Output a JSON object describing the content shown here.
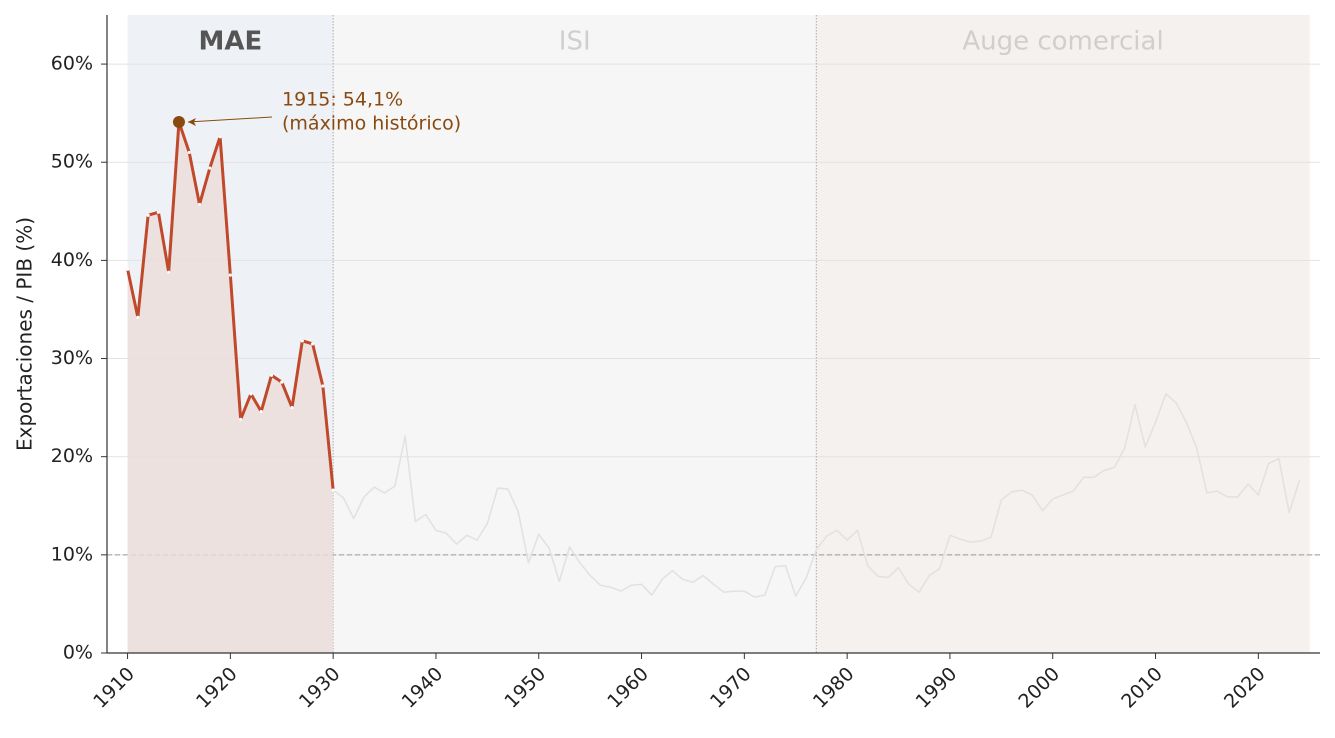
{
  "chart_data": {
    "type": "line",
    "ylabel": "Exportaciones / PIB (%)",
    "xlim": [
      1908,
      2026
    ],
    "ylim": [
      0,
      65
    ],
    "xticks": [
      1910,
      1920,
      1930,
      1940,
      1950,
      1960,
      1970,
      1980,
      1990,
      2000,
      2010,
      2020
    ],
    "yticks": [
      {
        "value": 0,
        "label": "0%"
      },
      {
        "value": 10,
        "label": "10%"
      },
      {
        "value": 20,
        "label": "20%"
      },
      {
        "value": 30,
        "label": "30%"
      },
      {
        "value": 40,
        "label": "40%"
      },
      {
        "value": 50,
        "label": "50%"
      },
      {
        "value": 60,
        "label": "60%"
      }
    ],
    "grid": true,
    "hline": 10,
    "regions": [
      {
        "label": "MAE",
        "start": 1910,
        "end": 1930,
        "color": "#eef2f7",
        "bold": true
      },
      {
        "label": "ISI",
        "start": 1930,
        "end": 1977,
        "color": "#f6f6f6",
        "bold": false
      },
      {
        "label": "Auge comercial",
        "start": 1977,
        "end": 2025,
        "color": "#f5f1ee",
        "bold": false
      }
    ],
    "series": [
      {
        "color": "#c0492b",
        "fill": "#ecdcda",
        "x": [
          1910,
          1911,
          1912,
          1913,
          1914,
          1915,
          1916,
          1917,
          1918,
          1919,
          1920,
          1921,
          1922,
          1923,
          1924,
          1925,
          1926,
          1927,
          1928,
          1929,
          1930
        ],
        "values": [
          39.1,
          34.2,
          44.6,
          44.9,
          38.8,
          54.1,
          51.0,
          45.7,
          49.4,
          52.6,
          38.5,
          23.8,
          26.4,
          24.6,
          28.3,
          27.6,
          25.0,
          31.8,
          31.5,
          27.2,
          16.6
        ]
      },
      {
        "color": "#e2e2e2",
        "x": [
          1930,
          1931,
          1932,
          1933,
          1934,
          1935,
          1936,
          1937,
          1938,
          1939,
          1940,
          1941,
          1942,
          1943,
          1944,
          1945,
          1946,
          1947,
          1948,
          1949,
          1950,
          1951,
          1952,
          1953,
          1954,
          1955,
          1956,
          1957,
          1958,
          1959,
          1960,
          1961,
          1962,
          1963,
          1964,
          1965,
          1966,
          1967,
          1968,
          1969,
          1970,
          1971,
          1972,
          1973,
          1974,
          1975,
          1976,
          1977,
          1978,
          1979,
          1980,
          1981,
          1982,
          1983,
          1984,
          1985,
          1986,
          1987,
          1988,
          1989,
          1990,
          1991,
          1992,
          1993,
          1994,
          1995,
          1996,
          1997,
          1998,
          1999,
          2000,
          2001,
          2002,
          2003,
          2004,
          2005,
          2006,
          2007,
          2008,
          2009,
          2010,
          2011,
          2012,
          2013,
          2014,
          2015,
          2016,
          2017,
          2018,
          2019,
          2020,
          2021,
          2022,
          2023,
          2024
        ],
        "values": [
          16.6,
          15.8,
          13.7,
          15.9,
          16.9,
          16.3,
          17.0,
          22.1,
          13.4,
          14.1,
          12.5,
          12.2,
          11.1,
          12.0,
          11.5,
          13.2,
          16.8,
          16.7,
          14.4,
          9.2,
          12.1,
          10.7,
          7.3,
          10.8,
          9.2,
          7.9,
          6.9,
          6.7,
          6.3,
          6.9,
          7.0,
          5.9,
          7.5,
          8.4,
          7.5,
          7.2,
          7.9,
          7.0,
          6.2,
          6.3,
          6.3,
          5.7,
          5.9,
          8.8,
          8.9,
          5.8,
          7.6,
          10.5,
          11.9,
          12.5,
          11.5,
          12.5,
          8.9,
          7.8,
          7.7,
          8.7,
          7.0,
          6.2,
          7.9,
          8.6,
          12.0,
          11.6,
          11.3,
          11.4,
          11.8,
          15.6,
          16.4,
          16.6,
          16.1,
          14.5,
          15.7,
          16.1,
          16.5,
          17.9,
          17.9,
          18.6,
          18.9,
          20.9,
          25.3,
          21.0,
          23.5,
          26.4,
          25.5,
          23.5,
          20.9,
          16.3,
          16.5,
          15.9,
          15.9,
          17.2,
          16.1,
          19.3,
          19.8,
          14.3,
          17.6
        ]
      }
    ],
    "annotation": {
      "lines": [
        "1915: 54,1%",
        "(máximo histórico)"
      ],
      "color": "#8a4a0f"
    }
  }
}
